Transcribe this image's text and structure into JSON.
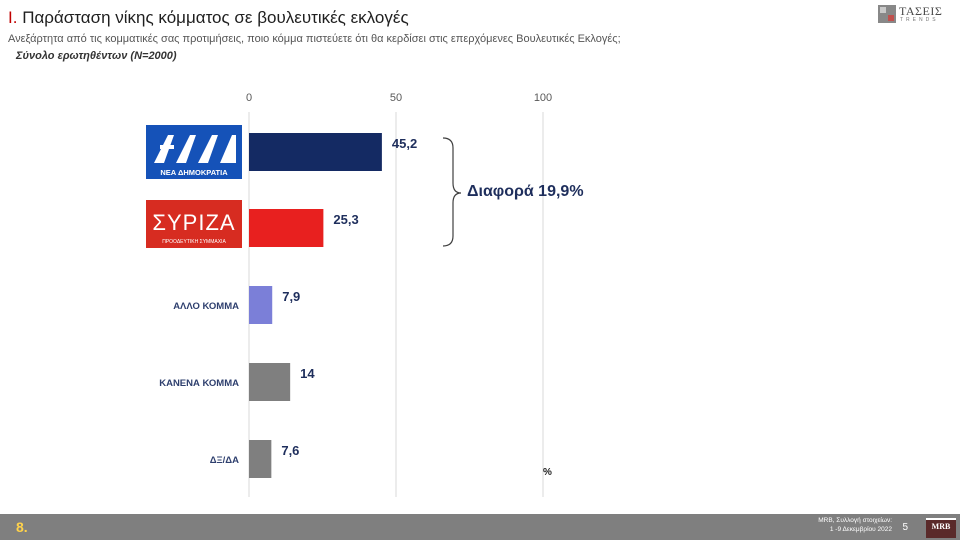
{
  "header": {
    "title_prefix": "Ι.",
    "title": "Παράσταση νίκης κόμματος σε βουλευτικές εκλογές",
    "subtitle": "Ανεξάρτητα από τις κομματικές σας προτιμήσεις, ποιο κόμμα πιστεύετε ότι θα κερδίσει στις επερχόμενες Βουλευτικές Εκλογές;",
    "base": "Σύνολο ερωτηθέντων (Ν=2000)"
  },
  "brand": {
    "name": "ΤΑΣΕΙΣ",
    "sub": "TRENDS"
  },
  "logos": {
    "nd_mark": "ΝΔ",
    "nd_text": "ΝΕΑ ΔΗΜΟΚΡΑΤΙΑ",
    "syriza_mark": "ΣΥΡΙΖΑ",
    "syriza_text": "ΠΡΟΟΔΕΥΤΙΚΗ ΣΥΜΜΑΧΙΑ"
  },
  "annotation": "Διαφορά 19,9%",
  "unit": "%",
  "chart_data": {
    "type": "bar",
    "orientation": "horizontal",
    "categories": [
      "ΝΕΑ ΔΗΜΟΚΡΑΤΙΑ",
      "ΣΥΡΙΖΑ",
      "ΑΛΛΟ ΚΟΜΜΑ",
      "ΚΑΝΕΝΑ ΚΟΜΜΑ",
      "ΔΞ/ΔΑ"
    ],
    "values": [
      45.2,
      25.3,
      7.9,
      14,
      7.6
    ],
    "value_labels": [
      "45,2",
      "25,3",
      "7,9",
      "14",
      "7,6"
    ],
    "colors": [
      "#142a63",
      "#e8201f",
      "#7b7fd8",
      "#7f7f7f",
      "#7f7f7f"
    ],
    "xlim": [
      0,
      100
    ],
    "xticks": [
      0,
      50,
      100
    ],
    "grid": true,
    "category_labels_as_text": [
      false,
      false,
      true,
      true,
      true
    ]
  },
  "footer": {
    "page_label": "8.",
    "source_line1": "MRB, Συλλογή στοιχείων:",
    "source_line2": "1 -9 Δεκεμβρίου 2022",
    "page_number": "5",
    "mrb_logo": "MRB"
  }
}
